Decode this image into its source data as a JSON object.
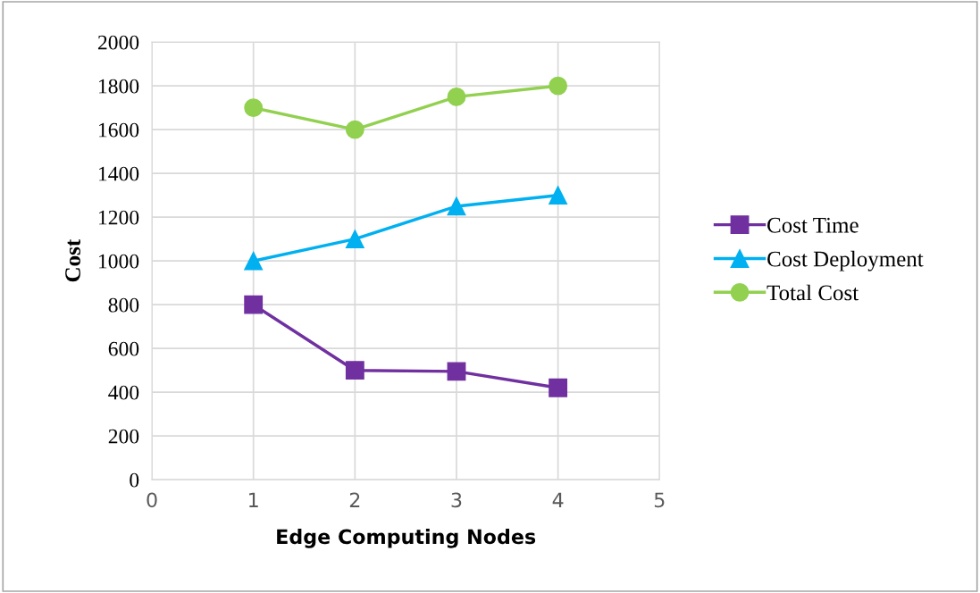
{
  "chart_data": {
    "type": "line",
    "xlabel": "Edge Computing Nodes",
    "ylabel": "Cost",
    "x": [
      1,
      2,
      3,
      4
    ],
    "series": [
      {
        "name": "Cost Time",
        "color": "#7030a0",
        "marker": "square",
        "values": [
          800,
          500,
          495,
          420
        ]
      },
      {
        "name": "Cost Deployment",
        "color": "#00b0f0",
        "marker": "triangle",
        "values": [
          1000,
          1100,
          1250,
          1300
        ]
      },
      {
        "name": "Total Cost",
        "color": "#92d050",
        "marker": "circle",
        "values": [
          1700,
          1600,
          1750,
          1800
        ]
      }
    ],
    "xlim": [
      0,
      5
    ],
    "xticks": [
      0,
      1,
      2,
      3,
      4,
      5
    ],
    "ylim": [
      0,
      2000
    ],
    "yticks": [
      0,
      200,
      400,
      600,
      800,
      1000,
      1200,
      1400,
      1600,
      1800,
      2000
    ],
    "grid": true,
    "legend": "right",
    "line_style": "solid"
  }
}
